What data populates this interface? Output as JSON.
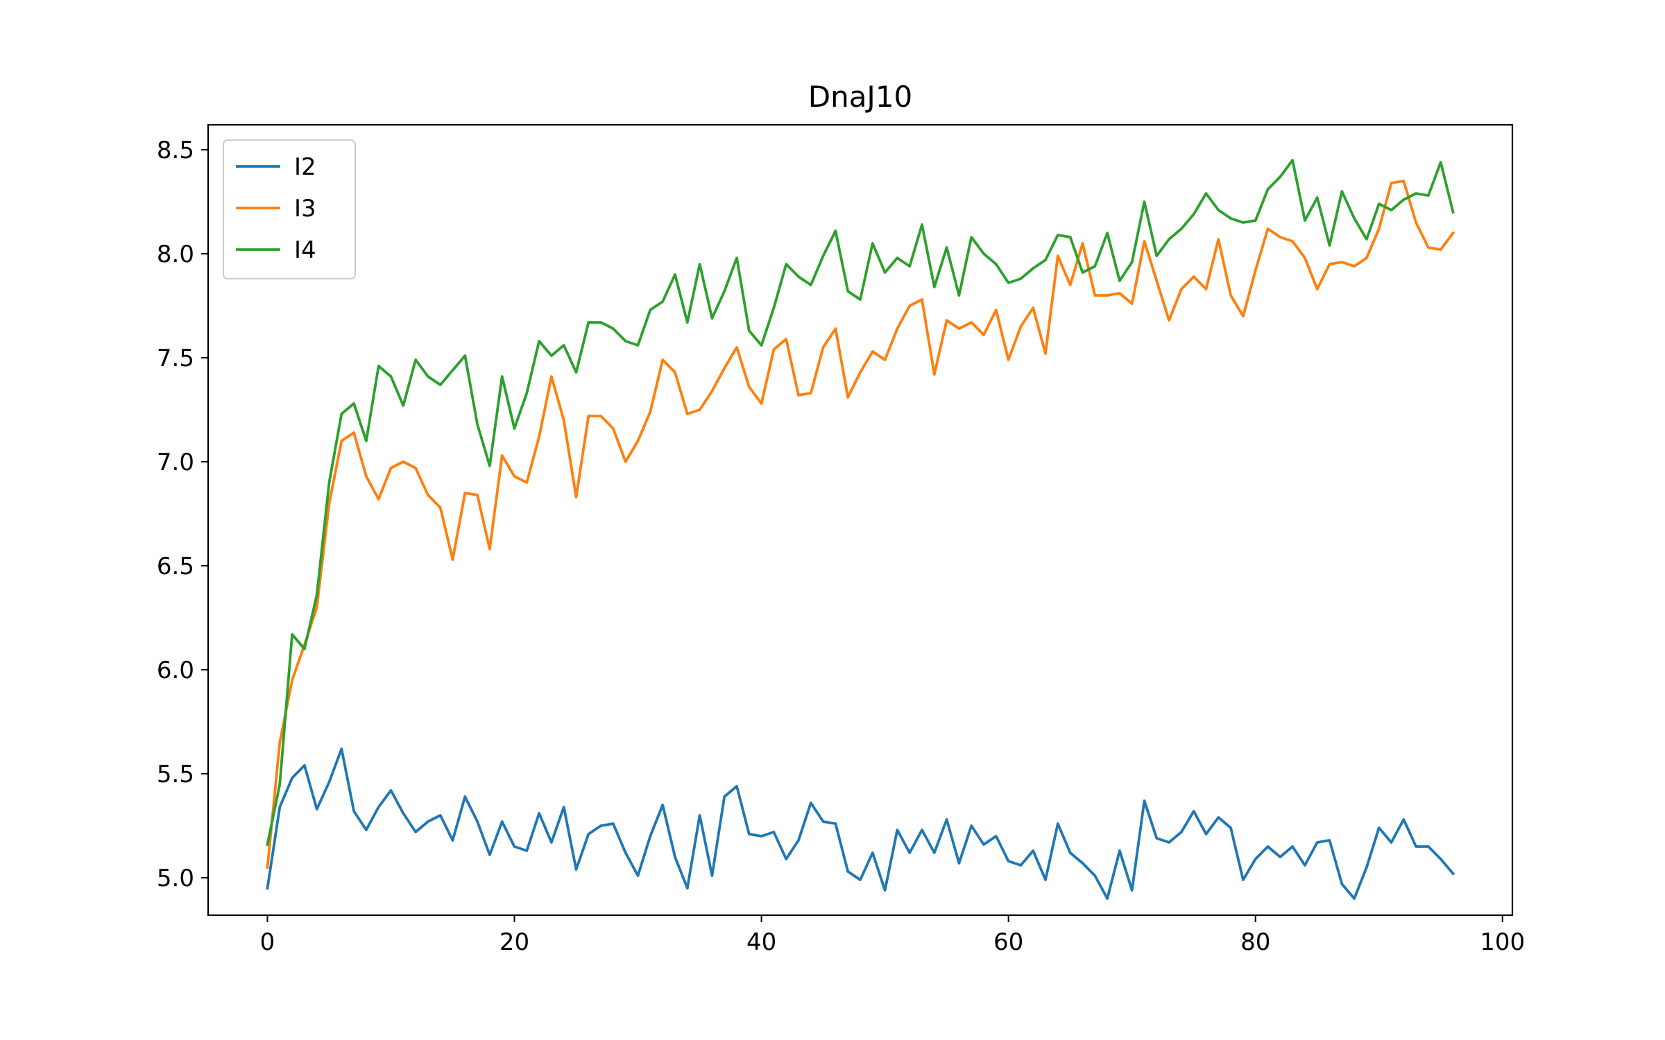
{
  "chart_data": {
    "type": "line",
    "title": "DnaJ10",
    "xlabel": "",
    "ylabel": "",
    "xlim": [
      -4.8,
      100.8
    ],
    "ylim": [
      4.82,
      8.62
    ],
    "xticks": [
      0,
      20,
      40,
      60,
      80,
      100
    ],
    "xtick_labels": [
      "0",
      "20",
      "40",
      "60",
      "80",
      "100"
    ],
    "yticks": [
      5.0,
      5.5,
      6.0,
      6.5,
      7.0,
      7.5,
      8.0,
      8.5
    ],
    "ytick_labels": [
      "5.0",
      "5.5",
      "6.0",
      "6.5",
      "7.0",
      "7.5",
      "8.0",
      "8.5"
    ],
    "grid": false,
    "legend_position": "top-left",
    "x": [
      0,
      1,
      2,
      3,
      4,
      5,
      6,
      7,
      8,
      9,
      10,
      11,
      12,
      13,
      14,
      15,
      16,
      17,
      18,
      19,
      20,
      21,
      22,
      23,
      24,
      25,
      26,
      27,
      28,
      29,
      30,
      31,
      32,
      33,
      34,
      35,
      36,
      37,
      38,
      39,
      40,
      41,
      42,
      43,
      44,
      45,
      46,
      47,
      48,
      49,
      50,
      51,
      52,
      53,
      54,
      55,
      56,
      57,
      58,
      59,
      60,
      61,
      62,
      63,
      64,
      65,
      66,
      67,
      68,
      69,
      70,
      71,
      72,
      73,
      74,
      75,
      76,
      77,
      78,
      79,
      80,
      81,
      82,
      83,
      84,
      85,
      86,
      87,
      88,
      89,
      90,
      91,
      92,
      93,
      94,
      95,
      96
    ],
    "series": [
      {
        "name": "I2",
        "color": "#1f77b4",
        "values": [
          4.95,
          5.34,
          5.48,
          5.54,
          5.33,
          5.46,
          5.62,
          5.32,
          5.23,
          5.34,
          5.42,
          5.31,
          5.22,
          5.27,
          5.3,
          5.18,
          5.39,
          5.27,
          5.11,
          5.27,
          5.15,
          5.13,
          5.31,
          5.17,
          5.34,
          5.04,
          5.21,
          5.25,
          5.26,
          5.12,
          5.01,
          5.2,
          5.35,
          5.1,
          4.95,
          5.3,
          5.01,
          5.39,
          5.44,
          5.21,
          5.2,
          5.22,
          5.09,
          5.18,
          5.36,
          5.27,
          5.26,
          5.03,
          4.99,
          5.12,
          4.94,
          5.23,
          5.12,
          5.23,
          5.12,
          5.28,
          5.07,
          5.25,
          5.16,
          5.2,
          5.08,
          5.06,
          5.13,
          4.99,
          5.26,
          5.12,
          5.07,
          5.01,
          4.9,
          5.13,
          4.94,
          5.37,
          5.19,
          5.17,
          5.22,
          5.32,
          5.21,
          5.29,
          5.24,
          4.99,
          5.09,
          5.15,
          5.1,
          5.15,
          5.06,
          5.17,
          5.18,
          4.97,
          4.9,
          5.05,
          5.24,
          5.17,
          5.28,
          5.15,
          5.15,
          5.09,
          5.02
        ]
      },
      {
        "name": "I3",
        "color": "#ff7f0e",
        "values": [
          5.05,
          5.65,
          5.95,
          6.12,
          6.3,
          6.8,
          7.1,
          7.14,
          6.93,
          6.82,
          6.97,
          7.0,
          6.97,
          6.84,
          6.78,
          6.53,
          6.85,
          6.84,
          6.58,
          7.03,
          6.93,
          6.9,
          7.12,
          7.41,
          7.2,
          6.83,
          7.22,
          7.22,
          7.16,
          7.0,
          7.1,
          7.24,
          7.49,
          7.43,
          7.23,
          7.25,
          7.34,
          7.45,
          7.55,
          7.36,
          7.28,
          7.54,
          7.59,
          7.32,
          7.33,
          7.55,
          7.64,
          7.31,
          7.43,
          7.53,
          7.49,
          7.64,
          7.75,
          7.78,
          7.42,
          7.68,
          7.64,
          7.67,
          7.61,
          7.73,
          7.49,
          7.65,
          7.74,
          7.52,
          7.99,
          7.85,
          8.05,
          7.8,
          7.8,
          7.81,
          7.76,
          8.06,
          7.87,
          7.68,
          7.83,
          7.89,
          7.83,
          8.07,
          7.8,
          7.7,
          7.92,
          8.12,
          8.08,
          8.06,
          7.98,
          7.83,
          7.95,
          7.96,
          7.94,
          7.98,
          8.12,
          8.34,
          8.35,
          8.15,
          8.03,
          8.02,
          8.1
        ]
      },
      {
        "name": "I4",
        "color": "#2ca02c",
        "values": [
          5.16,
          5.45,
          6.17,
          6.1,
          6.36,
          6.9,
          7.23,
          7.28,
          7.1,
          7.46,
          7.41,
          7.27,
          7.49,
          7.41,
          7.37,
          7.44,
          7.51,
          7.18,
          6.98,
          7.41,
          7.16,
          7.33,
          7.58,
          7.51,
          7.56,
          7.43,
          7.67,
          7.67,
          7.64,
          7.58,
          7.56,
          7.73,
          7.77,
          7.9,
          7.67,
          7.95,
          7.69,
          7.82,
          7.98,
          7.63,
          7.56,
          7.74,
          7.95,
          7.89,
          7.85,
          7.99,
          8.11,
          7.82,
          7.78,
          8.05,
          7.91,
          7.98,
          7.94,
          8.14,
          7.84,
          8.03,
          7.8,
          8.08,
          8.0,
          7.95,
          7.86,
          7.88,
          7.93,
          7.97,
          8.09,
          8.08,
          7.91,
          7.94,
          8.1,
          7.87,
          7.96,
          8.25,
          7.99,
          8.07,
          8.12,
          8.19,
          8.29,
          8.21,
          8.17,
          8.15,
          8.16,
          8.31,
          8.37,
          8.45,
          8.16,
          8.27,
          8.04,
          8.3,
          8.17,
          8.07,
          8.24,
          8.21,
          8.26,
          8.29,
          8.28,
          8.44,
          8.2
        ]
      }
    ]
  }
}
